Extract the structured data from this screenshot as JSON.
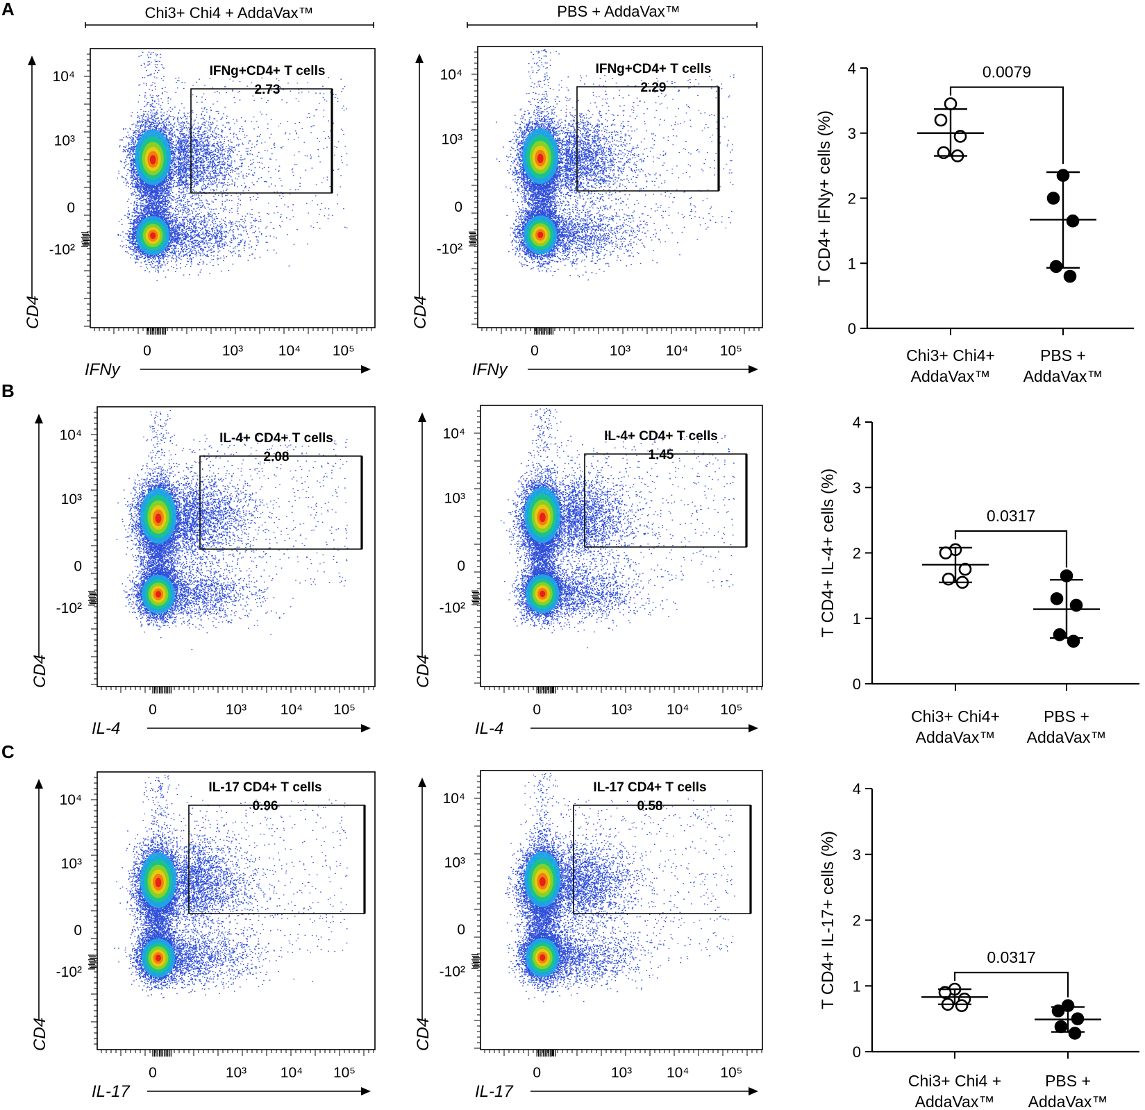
{
  "column_headers": [
    "Chi3+ Chi4 + AddaVax™",
    "PBS + AddaVax™"
  ],
  "flow_tick_labels": {
    "y": [
      "10⁴",
      "10³",
      "0",
      "-10²"
    ],
    "x": [
      "0",
      "10³",
      "10⁴",
      "10⁵"
    ]
  },
  "colors": {
    "cloud": "#2f4fd8",
    "density": [
      "#1ea8e6",
      "#19c48a",
      "#8fd21e",
      "#f0c80f",
      "#f07a10",
      "#e81818"
    ],
    "open_marker_fill": "#ffffff",
    "filled_marker": "#000000"
  },
  "chart_data": [
    {
      "panel": "A",
      "type": "scatter",
      "kind": "flow-cytometry",
      "xlabel": "IFNy",
      "ylabel": "CD4",
      "gate": {
        "label": "IFNg+CD4+ T cells",
        "percent": "2.73"
      }
    },
    {
      "panel": "A",
      "type": "scatter",
      "kind": "flow-cytometry",
      "xlabel": "IFNy",
      "ylabel": "CD4",
      "gate": {
        "label": "IFNg+CD4+ T cells",
        "percent": "2.29"
      }
    },
    {
      "panel": "A",
      "type": "scatter",
      "kind": "dot-plot",
      "ylabel": "T CD4+ IFNy+ cells (%)",
      "ylim": [
        0,
        4
      ],
      "yticks": [
        "0",
        "1",
        "2",
        "3",
        "4"
      ],
      "categories": [
        [
          "Chi3+ Chi4+",
          "AddaVax™"
        ],
        [
          "PBS +",
          "AddaVax™"
        ]
      ],
      "series": [
        {
          "name": "Chi3+ Chi4+ AddaVax™",
          "marker": "open",
          "values": [
            3.45,
            3.2,
            2.95,
            2.7,
            2.65
          ],
          "mean": 3.0,
          "sd_low": 2.65,
          "sd_high": 3.37
        },
        {
          "name": "PBS + AddaVax™",
          "marker": "filled",
          "values": [
            2.35,
            2.0,
            1.65,
            0.95,
            0.8
          ],
          "mean": 1.67,
          "sd_low": 0.93,
          "sd_high": 2.4
        }
      ],
      "significance": "0.0079"
    },
    {
      "panel": "B",
      "type": "scatter",
      "kind": "flow-cytometry",
      "xlabel": "IL-4",
      "ylabel": "CD4",
      "gate": {
        "label": "IL-4+ CD4+ T cells",
        "percent": "2.08"
      }
    },
    {
      "panel": "B",
      "type": "scatter",
      "kind": "flow-cytometry",
      "xlabel": "IL-4",
      "ylabel": "CD4",
      "gate": {
        "label": "IL-4+ CD4+ T cells",
        "percent": "1.45"
      }
    },
    {
      "panel": "B",
      "type": "scatter",
      "kind": "dot-plot",
      "ylabel": "T CD4+ IL-4+ cells (%)",
      "ylim": [
        0,
        4
      ],
      "yticks": [
        "0",
        "1",
        "2",
        "3",
        "4"
      ],
      "categories": [
        [
          "Chi3+ Chi4+",
          "AddaVax™"
        ],
        [
          "PBS +",
          "AddaVax™"
        ]
      ],
      "series": [
        {
          "name": "Chi3+ Chi4+ AddaVax™",
          "marker": "open",
          "values": [
            2.05,
            2.0,
            1.75,
            1.6,
            1.55
          ],
          "mean": 1.82,
          "sd_low": 1.55,
          "sd_high": 2.08
        },
        {
          "name": "PBS + AddaVax™",
          "marker": "filled",
          "values": [
            1.65,
            1.3,
            1.2,
            0.75,
            0.65
          ],
          "mean": 1.14,
          "sd_low": 0.7,
          "sd_high": 1.59
        }
      ],
      "significance": "0.0317"
    },
    {
      "panel": "C",
      "type": "scatter",
      "kind": "flow-cytometry",
      "xlabel": "IL-17",
      "ylabel": "CD4",
      "gate": {
        "label": "IL-17 CD4+ T cells",
        "percent": "0.96"
      }
    },
    {
      "panel": "C",
      "type": "scatter",
      "kind": "flow-cytometry",
      "xlabel": "IL-17",
      "ylabel": "CD4",
      "gate": {
        "label": "IL-17 CD4+ T cells",
        "percent": "0.58"
      }
    },
    {
      "panel": "C",
      "type": "scatter",
      "kind": "dot-plot",
      "ylabel": "T CD4+ IL-17+ cells (%)",
      "ylim": [
        0,
        4
      ],
      "yticks": [
        "0",
        "1",
        "2",
        "3",
        "4"
      ],
      "categories": [
        [
          "Chi3+ Chi4 +",
          "AddaVax™"
        ],
        [
          "PBS +",
          "AddaVax™"
        ]
      ],
      "series": [
        {
          "name": "Chi3+ Chi4 + AddaVax™",
          "marker": "open",
          "values": [
            0.95,
            0.9,
            0.8,
            0.72,
            0.7
          ],
          "mean": 0.83,
          "sd_low": 0.72,
          "sd_high": 0.95
        },
        {
          "name": "PBS + AddaVax™",
          "marker": "filled",
          "values": [
            0.7,
            0.62,
            0.5,
            0.38,
            0.28
          ],
          "mean": 0.49,
          "sd_low": 0.3,
          "sd_high": 0.68
        }
      ],
      "significance": "0.0317"
    }
  ]
}
